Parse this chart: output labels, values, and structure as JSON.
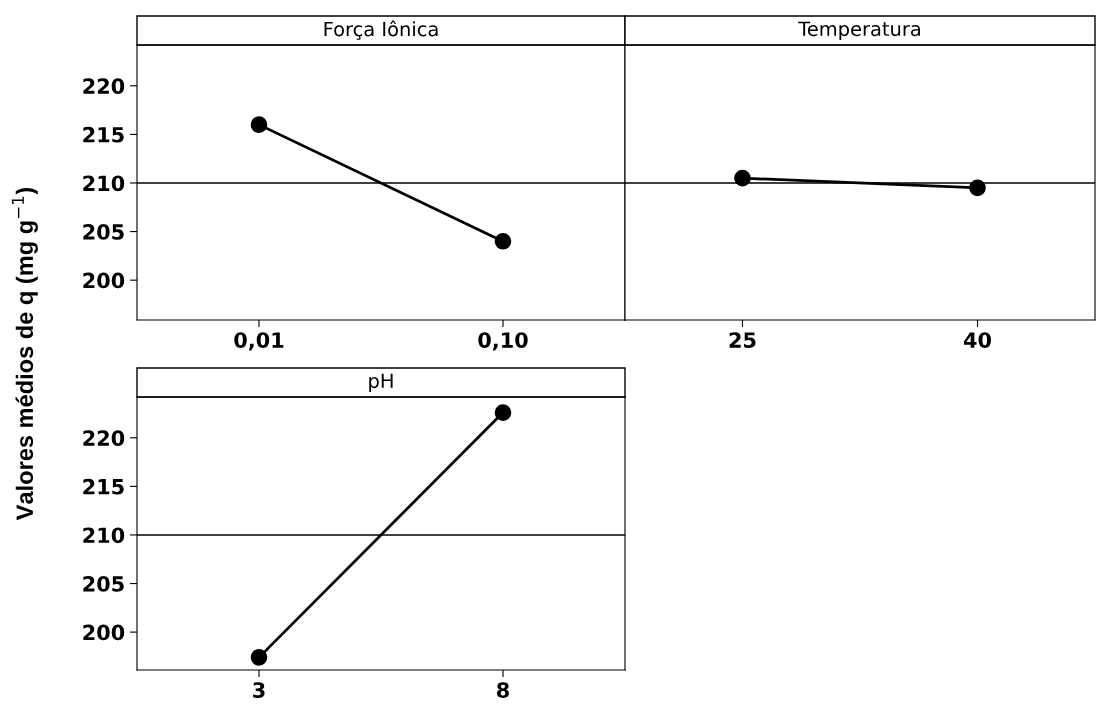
{
  "chart_data": [
    {
      "type": "line",
      "title": "Força Iônica",
      "ylabel": "Valores médios de q (mg g$^{−1}$)",
      "categories": [
        "0,01",
        "0,10"
      ],
      "values": [
        216.0,
        204.0
      ],
      "color": "#000000",
      "marker": "circle",
      "ylim": [
        195.9,
        224.2
      ],
      "yticks": [
        200,
        205,
        210,
        215,
        220
      ],
      "ref_lines": [
        {
          "axis": "y",
          "value": 210
        }
      ],
      "grid": false
    },
    {
      "type": "line",
      "title": "Temperatura",
      "categories": [
        "25",
        "40"
      ],
      "values": [
        210.5,
        209.5
      ],
      "color": "#000000",
      "marker": "circle",
      "ylim": [
        195.9,
        224.2
      ],
      "yticks": [
        200,
        205,
        210,
        215,
        220
      ],
      "ref_lines": [
        {
          "axis": "y",
          "value": 210
        }
      ],
      "tick_labels": "x",
      "grid": false
    },
    {
      "type": "line",
      "title": "pH",
      "categories": [
        "3",
        "8"
      ],
      "values": [
        197.4,
        222.6
      ],
      "color": "#000000",
      "marker": "circle",
      "ylim": [
        196.1,
        224.2
      ],
      "yticks": [
        200,
        205,
        210,
        215,
        220
      ],
      "ref_lines": [
        {
          "axis": "y",
          "value": 210
        }
      ],
      "grid": false
    }
  ]
}
